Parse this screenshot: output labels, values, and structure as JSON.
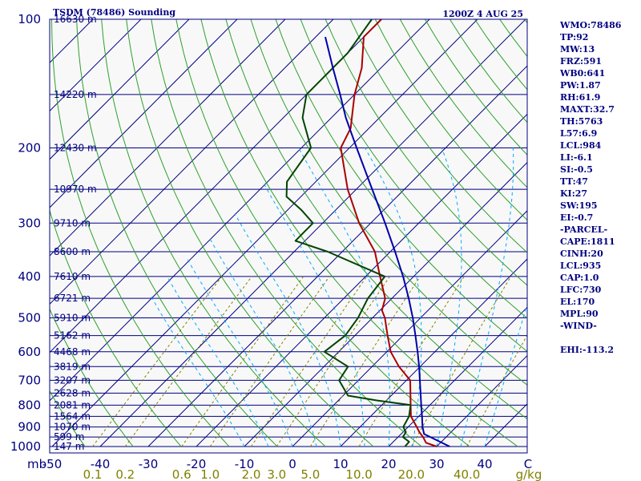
{
  "header": {
    "station_title": "TSDM (78486) Sounding",
    "time_title": "1200Z  4 AUG 25"
  },
  "indices": [
    "WMO:78486",
    "TP:92",
    "MW:13",
    "FRZ:591",
    "WB0:641",
    "PW:1.87",
    "RH:61.9",
    "MAXT:32.7",
    "TH:5763",
    "L57:6.9",
    "LCL:984",
    "LI:-6.1",
    "SI:-0.5",
    "TT:47",
    "KI:27",
    "SW:195",
    "EI:-0.7",
    "-PARCEL-",
    "CAPE:1811",
    "CINH:20",
    "LCL:935",
    "CAP:1.0",
    "LFC:730",
    "EL:170",
    "MPL:90",
    "-WIND-",
    "",
    "EHI:-113.2"
  ],
  "colors": {
    "frame": "#000080",
    "isobar": "#000080",
    "isotherm": "#000080",
    "dry_adiabat": "#2ca02c",
    "moist_adiabat": "#00aaff",
    "mixing_ratio": "#808000",
    "temperature": "#aa0000",
    "dewpoint": "#004400",
    "parcel": "#0000aa",
    "plot_bg": "#f8f8f8"
  },
  "chart_data": {
    "type": "line",
    "chart_kind": "skew-T log-p sounding",
    "x_unit": "deg C",
    "y_unit": "hPa",
    "y_scale": "log",
    "ylim": [
      1000,
      100
    ],
    "xlim_at_1000hPa": [
      -50,
      50
    ],
    "pressure_labels": [
      "100",
      "200",
      "300",
      "400",
      "500",
      "600",
      "700",
      "800",
      "900",
      "1000"
    ],
    "height_levels": [
      {
        "p": 100,
        "label": "16630 m"
      },
      {
        "p": 150,
        "label": "14220 m"
      },
      {
        "p": 200,
        "label": "12430 m"
      },
      {
        "p": 250,
        "label": "10970 m"
      },
      {
        "p": 300,
        "label": "9710 m"
      },
      {
        "p": 350,
        "label": "8600 m"
      },
      {
        "p": 400,
        "label": "7610 m"
      },
      {
        "p": 450,
        "label": "6721 m"
      },
      {
        "p": 500,
        "label": "5910 m"
      },
      {
        "p": 550,
        "label": "5162 m"
      },
      {
        "p": 600,
        "label": "4468 m"
      },
      {
        "p": 650,
        "label": "3819 m"
      },
      {
        "p": 700,
        "label": "3207 m"
      },
      {
        "p": 750,
        "label": "2628 m"
      },
      {
        "p": 800,
        "label": "2081 m"
      },
      {
        "p": 850,
        "label": "1564 m"
      },
      {
        "p": 900,
        "label": "1070 m"
      },
      {
        "p": 950,
        "label": "599 m"
      },
      {
        "p": 1000,
        "label": "147 m"
      }
    ],
    "temperature_ticks": [
      "-50",
      "-40",
      "-30",
      "-20",
      "-10",
      "0",
      "10",
      "20",
      "30",
      "40",
      "C"
    ],
    "mixing_ratio_ticks": [
      "0.1",
      "0.2",
      "0.6",
      "1.0",
      "2.0",
      "3.0",
      "5.0",
      "10.0",
      "20.0",
      "40.0",
      "g/kg"
    ],
    "units_label": "mb",
    "series": [
      {
        "name": "Temperature",
        "p": [
          1000,
          980,
          950,
          925,
          900,
          850,
          800,
          700,
          650,
          600,
          550,
          500,
          480,
          450,
          400,
          350,
          300,
          250,
          200,
          180,
          150,
          130,
          110,
          100
        ],
        "t": [
          30.0,
          27.0,
          25.2,
          23.4,
          21.8,
          18.4,
          16.0,
          10.8,
          5.6,
          0.8,
          -3.2,
          -7.4,
          -9.6,
          -11.4,
          -17.0,
          -23.2,
          -32.4,
          -41.8,
          -51.8,
          -53.8,
          -60.0,
          -64.0,
          -70.0,
          -70.0
        ]
      },
      {
        "name": "Dewpoint",
        "p": [
          1000,
          975,
          950,
          925,
          900,
          850,
          800,
          780,
          760,
          700,
          650,
          600,
          550,
          500,
          450,
          400,
          350,
          330,
          300,
          280,
          260,
          240,
          200,
          170,
          150,
          120,
          100
        ],
        "t": [
          23.4,
          23.3,
          21.0,
          20.6,
          19.0,
          18.0,
          16.0,
          8.0,
          1.0,
          -4.0,
          -5.0,
          -13.0,
          -12.0,
          -13.0,
          -15.0,
          -16.0,
          -33.0,
          -42.0,
          -42.0,
          -47.0,
          -53.0,
          -56.0,
          -58.0,
          -66.0,
          -70.0,
          -70.0,
          -72.0
        ]
      },
      {
        "name": "Parcel",
        "p": [
          1000,
          935,
          900,
          850,
          800,
          750,
          700,
          650,
          600,
          550,
          500,
          450,
          400,
          350,
          300,
          250,
          200,
          170,
          150,
          130,
          110
        ],
        "t": [
          32.7,
          24.8,
          23.0,
          20.7,
          18.2,
          15.6,
          12.8,
          9.8,
          6.4,
          2.6,
          -1.6,
          -6.5,
          -12.2,
          -19.0,
          -27.0,
          -36.7,
          -48.5,
          -57.0,
          -63.0,
          -70.0,
          -78.0
        ]
      }
    ]
  }
}
